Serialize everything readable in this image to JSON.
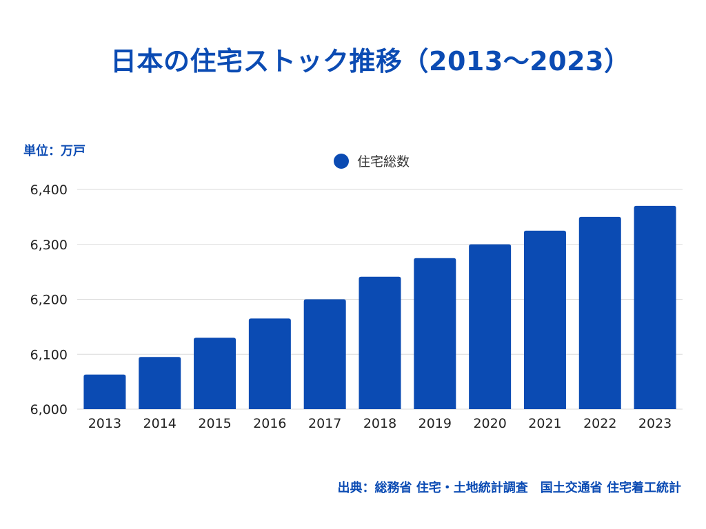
{
  "chart_data": {
    "type": "bar",
    "title": "日本の住宅ストック推移（2013〜2023）",
    "unit_label": "単位：万戸",
    "legend": [
      "住宅総数"
    ],
    "categories": [
      "2013",
      "2014",
      "2015",
      "2016",
      "2017",
      "2018",
      "2019",
      "2020",
      "2021",
      "2022",
      "2023"
    ],
    "series": [
      {
        "name": "住宅総数",
        "values": [
          6063,
          6095,
          6130,
          6165,
          6200,
          6241,
          6275,
          6300,
          6325,
          6350,
          6370
        ],
        "color": "#0b4bb3"
      }
    ],
    "yticks": [
      "6,000",
      "6,100",
      "6,200",
      "6,300",
      "6,400"
    ],
    "ytick_values": [
      6000,
      6100,
      6200,
      6300,
      6400
    ],
    "ylim": [
      6000,
      6400
    ],
    "xlabel": "",
    "ylabel": "",
    "grid": true,
    "legend_position": "top-center"
  },
  "source": "出典：総務省 住宅・土地統計調査　国土交通省 住宅着工統計",
  "colors": {
    "accent": "#0b4bb3",
    "grid": "#d9d9d9"
  }
}
